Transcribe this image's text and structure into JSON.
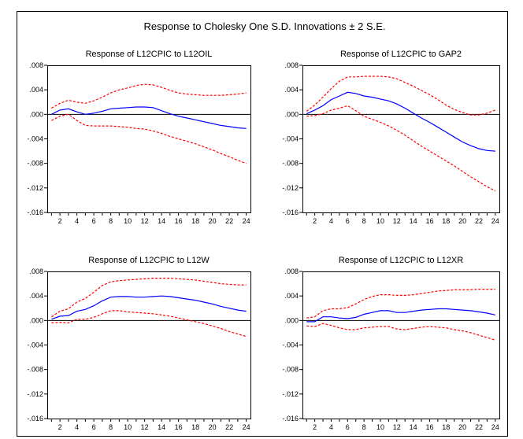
{
  "figure_title": "Response to Cholesky One S.D. Innovations ± 2 S.E.",
  "colors": {
    "response": "#0000ff",
    "bands": "#ff0000",
    "zero_line": "#000000"
  },
  "chart_data": [
    {
      "type": "line",
      "title": "Response of L12CPIC to L12OIL",
      "x": [
        1,
        2,
        3,
        4,
        5,
        6,
        7,
        8,
        9,
        10,
        11,
        12,
        13,
        14,
        15,
        16,
        17,
        18,
        19,
        20,
        21,
        22,
        23,
        24
      ],
      "x_tick_labels": [
        "2",
        "4",
        "6",
        "8",
        "10",
        "12",
        "14",
        "16",
        "18",
        "20",
        "22",
        "24"
      ],
      "y_tick_labels": [
        ".008",
        ".004",
        ".000",
        "-.004",
        "-.008",
        "-.012",
        "-.016"
      ],
      "ylim": [
        -0.016,
        0.008
      ],
      "series": [
        {
          "role": "response",
          "values": [
            0,
            0.0007,
            0.0009,
            0.0004,
            0,
            0.0002,
            0.0005,
            0.0009,
            0.001,
            0.0011,
            0.0012,
            0.0012,
            0.0011,
            0.0006,
            0.0001,
            -0.0003,
            -0.0006,
            -0.0009,
            -0.0012,
            -0.0015,
            -0.0018,
            -0.002,
            -0.0022,
            -0.0023
          ]
        },
        {
          "role": "upper",
          "values": [
            0.001,
            0.0018,
            0.0023,
            0.002,
            0.0018,
            0.0022,
            0.0028,
            0.0035,
            0.004,
            0.0043,
            0.0047,
            0.0049,
            0.0048,
            0.0044,
            0.0039,
            0.0035,
            0.0033,
            0.0032,
            0.0031,
            0.0031,
            0.0031,
            0.0032,
            0.0033,
            0.0035
          ]
        },
        {
          "role": "lower",
          "values": [
            -0.001,
            -0.0003,
            0,
            -0.001,
            -0.0018,
            -0.0019,
            -0.0019,
            -0.0019,
            -0.002,
            -0.0021,
            -0.0023,
            -0.0024,
            -0.0027,
            -0.0031,
            -0.0036,
            -0.004,
            -0.0044,
            -0.0048,
            -0.0053,
            -0.0058,
            -0.0064,
            -0.0069,
            -0.0075,
            -0.008
          ]
        }
      ]
    },
    {
      "type": "line",
      "title": "Response of L12CPIC to GAP2",
      "x": [
        1,
        2,
        3,
        4,
        5,
        6,
        7,
        8,
        9,
        10,
        11,
        12,
        13,
        14,
        15,
        16,
        17,
        18,
        19,
        20,
        21,
        22,
        23,
        24
      ],
      "x_tick_labels": [
        "2",
        "4",
        "6",
        "8",
        "10",
        "12",
        "14",
        "16",
        "18",
        "20",
        "22",
        "24"
      ],
      "y_tick_labels": [
        ".008",
        ".004",
        ".000",
        "-.004",
        "-.008",
        "-.012",
        "-.016"
      ],
      "ylim": [
        -0.016,
        0.008
      ],
      "series": [
        {
          "role": "response",
          "values": [
            0.0001,
            0.0007,
            0.0014,
            0.0024,
            0.003,
            0.0036,
            0.0034,
            0.003,
            0.0028,
            0.0025,
            0.0022,
            0.0017,
            0.001,
            0.0002,
            -0.0006,
            -0.0013,
            -0.0021,
            -0.0029,
            -0.0037,
            -0.0045,
            -0.0051,
            -0.0056,
            -0.0059,
            -0.006
          ]
        },
        {
          "role": "upper",
          "values": [
            0.0005,
            0.0015,
            0.0028,
            0.0042,
            0.0054,
            0.0061,
            0.0061,
            0.0062,
            0.0062,
            0.0062,
            0.0061,
            0.0058,
            0.0052,
            0.0046,
            0.0039,
            0.0032,
            0.0024,
            0.0015,
            0.0008,
            0.0003,
            -0.0001,
            -0.0001,
            0.0002,
            0.0007
          ]
        },
        {
          "role": "lower",
          "values": [
            -0.0003,
            -0.0002,
            0.0001,
            0.0007,
            0.001,
            0.0014,
            0.0006,
            -0.0003,
            -0.0008,
            -0.0013,
            -0.0019,
            -0.0026,
            -0.0034,
            -0.0043,
            -0.0052,
            -0.006,
            -0.0068,
            -0.0076,
            -0.0084,
            -0.0093,
            -0.0102,
            -0.011,
            -0.0118,
            -0.0125
          ]
        }
      ]
    },
    {
      "type": "line",
      "title": "Response of L12CPIC to L12W",
      "x": [
        1,
        2,
        3,
        4,
        5,
        6,
        7,
        8,
        9,
        10,
        11,
        12,
        13,
        14,
        15,
        16,
        17,
        18,
        19,
        20,
        21,
        22,
        23,
        24
      ],
      "x_tick_labels": [
        "2",
        "4",
        "6",
        "8",
        "10",
        "12",
        "14",
        "16",
        "18",
        "20",
        "22",
        "24"
      ],
      "y_tick_labels": [
        ".008",
        ".004",
        ".000",
        "-.004",
        "-.008",
        "-.012",
        "-.016"
      ],
      "ylim": [
        -0.016,
        0.008
      ],
      "series": [
        {
          "role": "response",
          "values": [
            0.0002,
            0.0007,
            0.0008,
            0.0015,
            0.0018,
            0.0024,
            0.0032,
            0.0038,
            0.0039,
            0.0039,
            0.0038,
            0.0038,
            0.0039,
            0.004,
            0.0039,
            0.0037,
            0.0035,
            0.0033,
            0.003,
            0.0027,
            0.0023,
            0.002,
            0.0017,
            0.0015
          ]
        },
        {
          "role": "upper",
          "values": [
            0.0006,
            0.0015,
            0.0019,
            0.003,
            0.0036,
            0.0046,
            0.0057,
            0.0063,
            0.0065,
            0.0066,
            0.0067,
            0.0068,
            0.0069,
            0.0069,
            0.0069,
            0.0068,
            0.0067,
            0.0066,
            0.0064,
            0.0062,
            0.006,
            0.0059,
            0.0058,
            0.0058
          ]
        },
        {
          "role": "lower",
          "values": [
            -0.0004,
            -0.0003,
            -0.0004,
            0.0002,
            0.0002,
            0.0005,
            0.0011,
            0.0016,
            0.0016,
            0.0014,
            0.0013,
            0.0012,
            0.0011,
            0.0009,
            0.0007,
            0.0004,
            0.0001,
            -0.0002,
            -0.0005,
            -0.0009,
            -0.0013,
            -0.0018,
            -0.0022,
            -0.0026
          ]
        }
      ]
    },
    {
      "type": "line",
      "title": "Response of L12CPIC to L12XR",
      "x": [
        1,
        2,
        3,
        4,
        5,
        6,
        7,
        8,
        9,
        10,
        11,
        12,
        13,
        14,
        15,
        16,
        17,
        18,
        19,
        20,
        21,
        22,
        23,
        24
      ],
      "x_tick_labels": [
        "2",
        "4",
        "6",
        "8",
        "10",
        "12",
        "14",
        "16",
        "18",
        "20",
        "22",
        "24"
      ],
      "y_tick_labels": [
        ".008",
        ".004",
        ".000",
        "-.004",
        "-.008",
        "-.012",
        "-.016"
      ],
      "ylim": [
        -0.016,
        0.008
      ],
      "series": [
        {
          "role": "response",
          "values": [
            -0.0002,
            -0.0002,
            0.0006,
            0.0006,
            0.0004,
            0.0003,
            0.0005,
            0.001,
            0.0013,
            0.0016,
            0.0016,
            0.0013,
            0.0013,
            0.0015,
            0.0017,
            0.0018,
            0.0019,
            0.0019,
            0.0018,
            0.0017,
            0.0016,
            0.0014,
            0.0012,
            0.0009
          ]
        },
        {
          "role": "upper",
          "values": [
            0.0004,
            0.0006,
            0.0016,
            0.0019,
            0.0019,
            0.0021,
            0.0027,
            0.0034,
            0.0039,
            0.0042,
            0.0042,
            0.0041,
            0.0041,
            0.0042,
            0.0044,
            0.0046,
            0.0048,
            0.0049,
            0.005,
            0.005,
            0.005,
            0.0051,
            0.0051,
            0.0051
          ]
        },
        {
          "role": "lower",
          "values": [
            -0.0009,
            -0.001,
            -0.0005,
            -0.0008,
            -0.0012,
            -0.0015,
            -0.0015,
            -0.0012,
            -0.0011,
            -0.001,
            -0.001,
            -0.0014,
            -0.0015,
            -0.0013,
            -0.0011,
            -0.001,
            -0.0011,
            -0.0012,
            -0.0015,
            -0.0017,
            -0.002,
            -0.0024,
            -0.0028,
            -0.0032
          ]
        }
      ]
    }
  ]
}
